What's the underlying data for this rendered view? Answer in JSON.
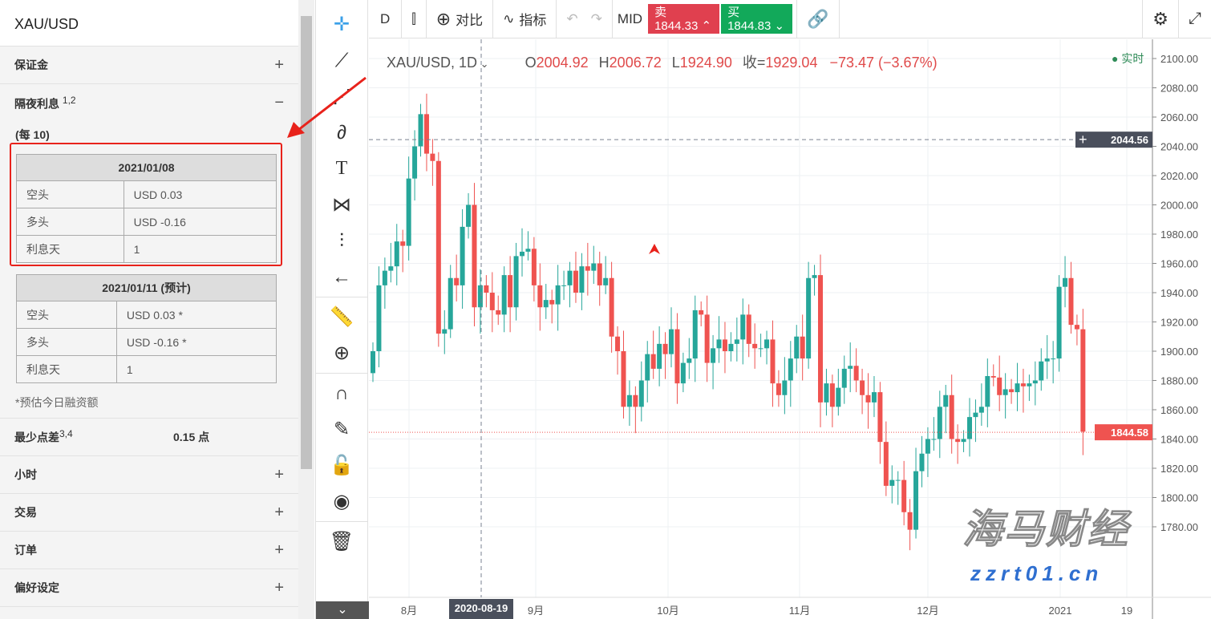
{
  "panel": {
    "title": "XAU/USD",
    "margin": "保证金",
    "overnight": "隔夜利息",
    "overnight_sup": "1,2",
    "per": "(每 10)",
    "table1": {
      "date": "2021/01/08",
      "rows": [
        [
          "空头",
          "USD 0.03"
        ],
        [
          "多头",
          "USD -0.16"
        ],
        [
          "利息天",
          "1"
        ]
      ]
    },
    "table2": {
      "date": "2021/01/11 (预计)",
      "rows": [
        [
          "空头",
          "USD 0.03 *"
        ],
        [
          "多头",
          "USD -0.16 *"
        ],
        [
          "利息天",
          "1"
        ]
      ]
    },
    "note": "*预估今日融资额",
    "min_spread": "最少点差",
    "min_spread_sup": "3,4",
    "min_spread_val": "0.15 点",
    "sections": [
      "小时",
      "交易",
      "订单",
      "偏好设定"
    ],
    "plus": "+",
    "minus": "−"
  },
  "toolbar": {
    "interval": "D",
    "compare": "对比",
    "indicators": "指标",
    "mid": "MID",
    "sell_label": "卖",
    "sell_price": "1844.33",
    "buy_label": "买",
    "buy_price": "1844.83"
  },
  "legend": {
    "symbol": "XAU/USD, 1D",
    "o_label": "O",
    "o": "2004.92",
    "h_label": "H",
    "h": "2006.72",
    "l_label": "L",
    "l": "1924.90",
    "c_label": "收=",
    "c": "1929.04",
    "change": "−73.47 (−3.67%)",
    "live": "实时"
  },
  "watermark": "海马财经 zzrt01.cn",
  "colors": {
    "up": "#26a69a",
    "down": "#ef5350",
    "sell": "#e0404f",
    "buy": "#12a95a"
  },
  "chart_data": {
    "type": "candlestick",
    "ylim": [
      1760,
      2110
    ],
    "yticks": [
      2100,
      2080,
      2060,
      2040,
      2020,
      2000,
      1980,
      1960,
      1940,
      1920,
      1900,
      1880,
      1860,
      1840,
      1820,
      1800,
      1780
    ],
    "xticks": [
      "8月",
      "9月",
      "10月",
      "11月",
      "12月",
      "2021",
      "19"
    ],
    "crosshair_date": "2020-08-19",
    "crosshair_price": "2044.56",
    "last_price": "1844.58",
    "closes": [
      1900,
      1945,
      1955,
      1958,
      1975,
      1972,
      2018,
      2040,
      2062,
      2035,
      2030,
      1912,
      1915,
      1950,
      1945,
      1985,
      2000,
      1930,
      1945,
      1940,
      1928,
      1925,
      1952,
      1930,
      1965,
      1968,
      1970,
      1945,
      1930,
      1935,
      1932,
      1945,
      1945,
      1955,
      1940,
      1958,
      1955,
      1960,
      1945,
      1950,
      1910,
      1900,
      1862,
      1870,
      1862,
      1880,
      1898,
      1888,
      1905,
      1898,
      1915,
      1878,
      1892,
      1895,
      1928,
      1925,
      1892,
      1902,
      1908,
      1900,
      1905,
      1908,
      1925,
      1905,
      1902,
      1902,
      1908,
      1878,
      1870,
      1880,
      1895,
      1910,
      1895,
      1950,
      1952,
      1865,
      1878,
      1862,
      1875,
      1888,
      1890,
      1880,
      1870,
      1865,
      1872,
      1838,
      1808,
      1812,
      1812,
      1790,
      1778,
      1818,
      1830,
      1840,
      1840,
      1862,
      1870,
      1840,
      1838,
      1840,
      1855,
      1858,
      1862,
      1883,
      1882,
      1870,
      1874,
      1872,
      1878,
      1876,
      1878,
      1880,
      1893,
      1895,
      1895,
      1944,
      1950,
      1918,
      1915,
      1845
    ]
  }
}
